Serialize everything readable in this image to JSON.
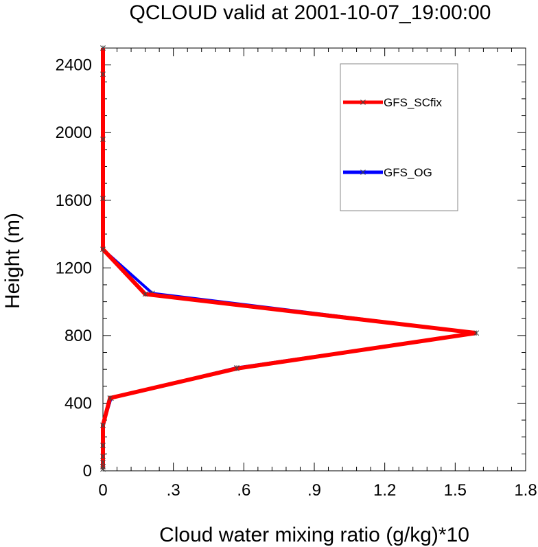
{
  "chart_data": {
    "type": "line",
    "title": "QCLOUD valid at 2001-10-07_19:00:00",
    "xlabel": "Cloud water mixing ratio (g/kg)*10",
    "ylabel": "Height (m)",
    "xlim": [
      0,
      1.8
    ],
    "ylim": [
      0,
      2500
    ],
    "x_ticks": [
      0,
      0.3,
      0.6,
      0.9,
      1.2,
      1.5,
      1.8
    ],
    "x_tick_labels": [
      "0",
      ".3",
      ".6",
      ".9",
      "1.2",
      "1.5",
      "1.8"
    ],
    "y_ticks": [
      0,
      400,
      800,
      1200,
      1600,
      2000,
      2400
    ],
    "y_tick_labels": [
      "0",
      "400",
      "800",
      "1200",
      "1600",
      "2000",
      "2400"
    ],
    "grid": false,
    "legend": "top-right",
    "series": [
      {
        "name": "GFS_OG",
        "color": "#0000ff",
        "points": [
          {
            "x": 0.0,
            "y": 10
          },
          {
            "x": 0.0,
            "y": 25
          },
          {
            "x": 0.0,
            "y": 50
          },
          {
            "x": 0.0,
            "y": 85
          },
          {
            "x": 0.0,
            "y": 150
          },
          {
            "x": 0.0,
            "y": 270
          },
          {
            "x": 0.035,
            "y": 430
          },
          {
            "x": 0.57,
            "y": 610
          },
          {
            "x": 1.59,
            "y": 815
          },
          {
            "x": 0.21,
            "y": 1050
          },
          {
            "x": 0.0,
            "y": 1310
          },
          {
            "x": 0.0,
            "y": 1610
          },
          {
            "x": 0.0,
            "y": 1960
          },
          {
            "x": 0.0,
            "y": 2345
          },
          {
            "x": 0.0,
            "y": 2500
          }
        ]
      },
      {
        "name": "GFS_SCfix",
        "color": "#ff0000",
        "points": [
          {
            "x": 0.0,
            "y": 10
          },
          {
            "x": 0.0,
            "y": 25
          },
          {
            "x": 0.0,
            "y": 50
          },
          {
            "x": 0.0,
            "y": 85
          },
          {
            "x": 0.0,
            "y": 150
          },
          {
            "x": 0.0,
            "y": 270
          },
          {
            "x": 0.03,
            "y": 430
          },
          {
            "x": 0.57,
            "y": 605
          },
          {
            "x": 1.59,
            "y": 815
          },
          {
            "x": 0.18,
            "y": 1045
          },
          {
            "x": 0.0,
            "y": 1310
          },
          {
            "x": 0.0,
            "y": 1610
          },
          {
            "x": 0.0,
            "y": 1960
          },
          {
            "x": 0.0,
            "y": 2345
          },
          {
            "x": 0.0,
            "y": 2500
          }
        ]
      }
    ],
    "legend_entries": [
      "GFS_SCfix",
      "GFS_OG"
    ]
  }
}
